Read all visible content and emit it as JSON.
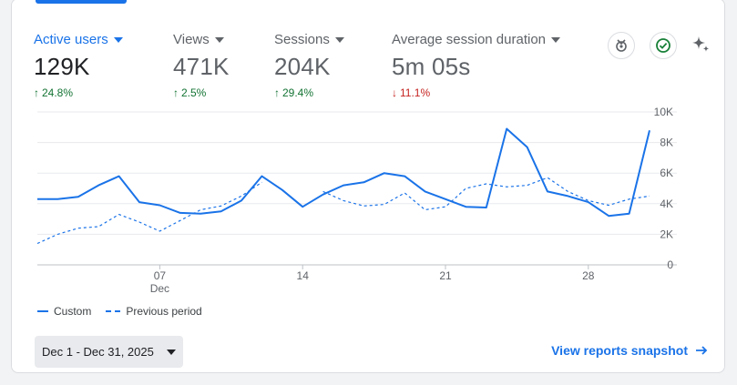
{
  "metrics": [
    {
      "label": "Active users",
      "value": "129K",
      "change": "24.8%",
      "direction": "up"
    },
    {
      "label": "Views",
      "value": "471K",
      "change": "2.5%",
      "direction": "up"
    },
    {
      "label": "Sessions",
      "value": "204K",
      "change": "29.4%",
      "direction": "up"
    },
    {
      "label": "Average session duration",
      "value": "5m 05s",
      "change": "11.1%",
      "direction": "down"
    }
  ],
  "icons": {
    "insights": "badge-icon",
    "check": "check-circle-icon",
    "sparkle": "sparkle-icon"
  },
  "colors": {
    "accent": "#1a73e8",
    "up": "#137333",
    "down": "#c5221f"
  },
  "chart_data": {
    "type": "line",
    "y_ticks": [
      "10K",
      "8K",
      "6K",
      "4K",
      "2K",
      "0"
    ],
    "ylim": [
      0,
      10000
    ],
    "x_ticks": [
      {
        "day": 7,
        "label": "07",
        "sub": "Dec"
      },
      {
        "day": 14,
        "label": "14",
        "sub": ""
      },
      {
        "day": 21,
        "label": "21",
        "sub": ""
      },
      {
        "day": 28,
        "label": "28",
        "sub": ""
      }
    ],
    "x": [
      1,
      2,
      3,
      4,
      5,
      6,
      7,
      8,
      9,
      10,
      11,
      12,
      13,
      14,
      15,
      16,
      17,
      18,
      19,
      20,
      21,
      22,
      23,
      24,
      25,
      26,
      27,
      28,
      29,
      30,
      31
    ],
    "series": [
      {
        "name": "Custom",
        "style": "solid",
        "values": [
          4300,
          4300,
          4450,
          5200,
          5800,
          4100,
          3900,
          3400,
          3350,
          3500,
          4200,
          5800,
          4900,
          3800,
          4600,
          5200,
          5400,
          6000,
          5800,
          4800,
          4300,
          3800,
          3750,
          8900,
          7700,
          4800,
          4500,
          4100,
          3200,
          3350,
          8800
        ]
      },
      {
        "name": "Previous period",
        "style": "dashed",
        "values": [
          1400,
          2000,
          2400,
          2500,
          3300,
          2800,
          2200,
          2900,
          3600,
          3850,
          4500,
          5400,
          null,
          null,
          4800,
          4200,
          3850,
          3950,
          4700,
          3600,
          3800,
          5000,
          5300,
          5100,
          5200,
          5700,
          4800,
          4200,
          3900,
          4300,
          4500
        ]
      }
    ]
  },
  "legend": {
    "custom": "Custom",
    "previous": "Previous period"
  },
  "date_range": "Dec 1 - Dec 31, 2025",
  "snapshot_link": "View reports snapshot"
}
